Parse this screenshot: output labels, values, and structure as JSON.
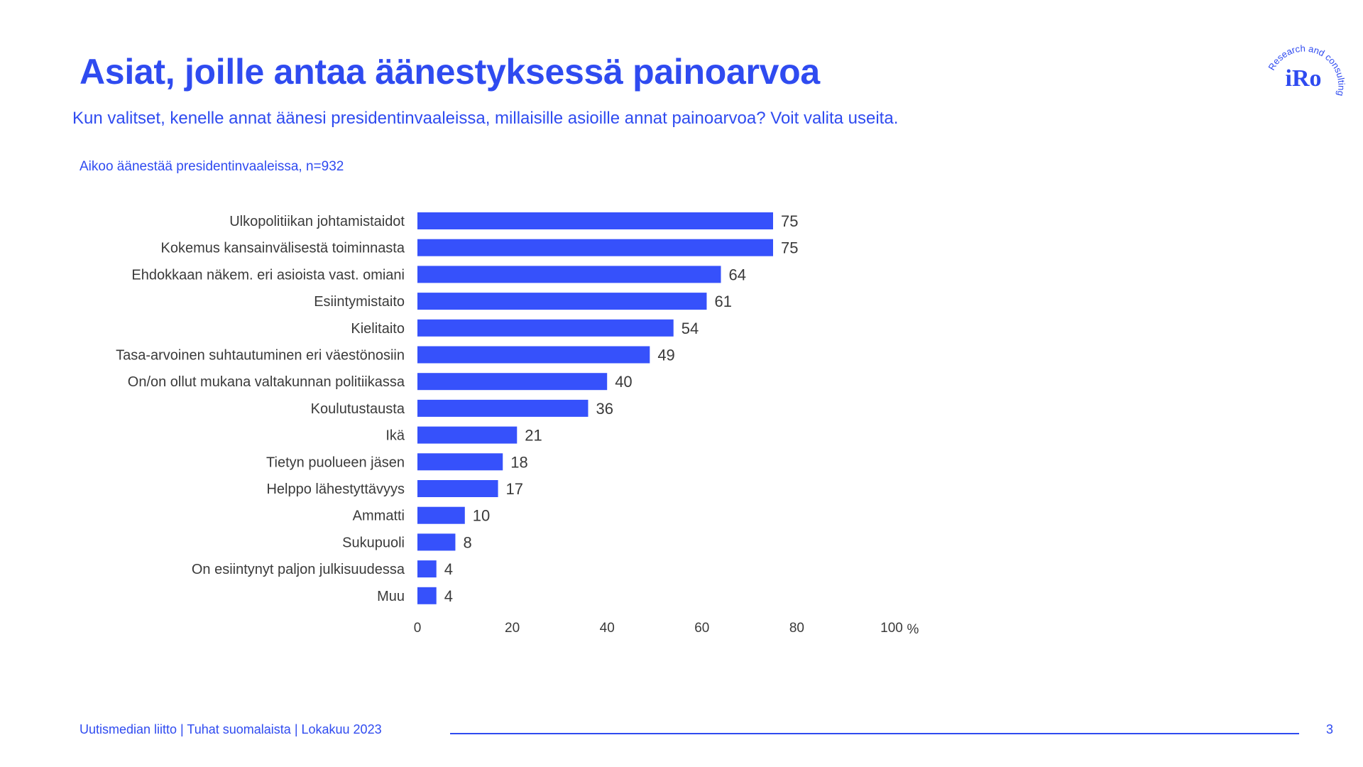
{
  "title": "Asiat, joille antaa äänestyksessä painoarvoa",
  "subtitle": "Kun valitset, kenelle annat äänesi presidentinvaaleissa, millaisille asioille annat painoarvoa? Voit valita useita.",
  "base_label": "Aikoo äänestää presidentinvaaleissa, n=932",
  "logo": {
    "text": "iRo",
    "ring_text": "Research and consulting"
  },
  "footer": {
    "text": "Uutismedian liitto | Tuhat suomalaista | Lokakuu 2023",
    "page_number": "3"
  },
  "colors": {
    "accent": "#2f4bf0",
    "bar": "#3651fb",
    "text": "#3a3a3a"
  },
  "chart_data": {
    "type": "bar",
    "orientation": "horizontal",
    "categories": [
      "Ulkopolitiikan johtamistaidot",
      "Kokemus kansainvälisestä toiminnasta",
      "Ehdokkaan näkem. eri asioista vast. omiani",
      "Esiintymistaito",
      "Kielitaito",
      "Tasa-arvoinen suhtautuminen eri väestönosiin",
      "On/on ollut mukana valtakunnan politiikassa",
      "Koulutustausta",
      "Ikä",
      "Tietyn puolueen jäsen",
      "Helppo lähestyttävyys",
      "Ammatti",
      "Sukupuoli",
      "On esiintynyt paljon julkisuudessa",
      "Muu"
    ],
    "values": [
      75,
      75,
      64,
      61,
      54,
      49,
      40,
      36,
      21,
      18,
      17,
      10,
      8,
      4,
      4
    ],
    "xlim": [
      0,
      100
    ],
    "xticks": [
      "0",
      "20",
      "40",
      "60",
      "80",
      "100"
    ],
    "xunit": "%",
    "grid": false,
    "data_labels": true
  }
}
